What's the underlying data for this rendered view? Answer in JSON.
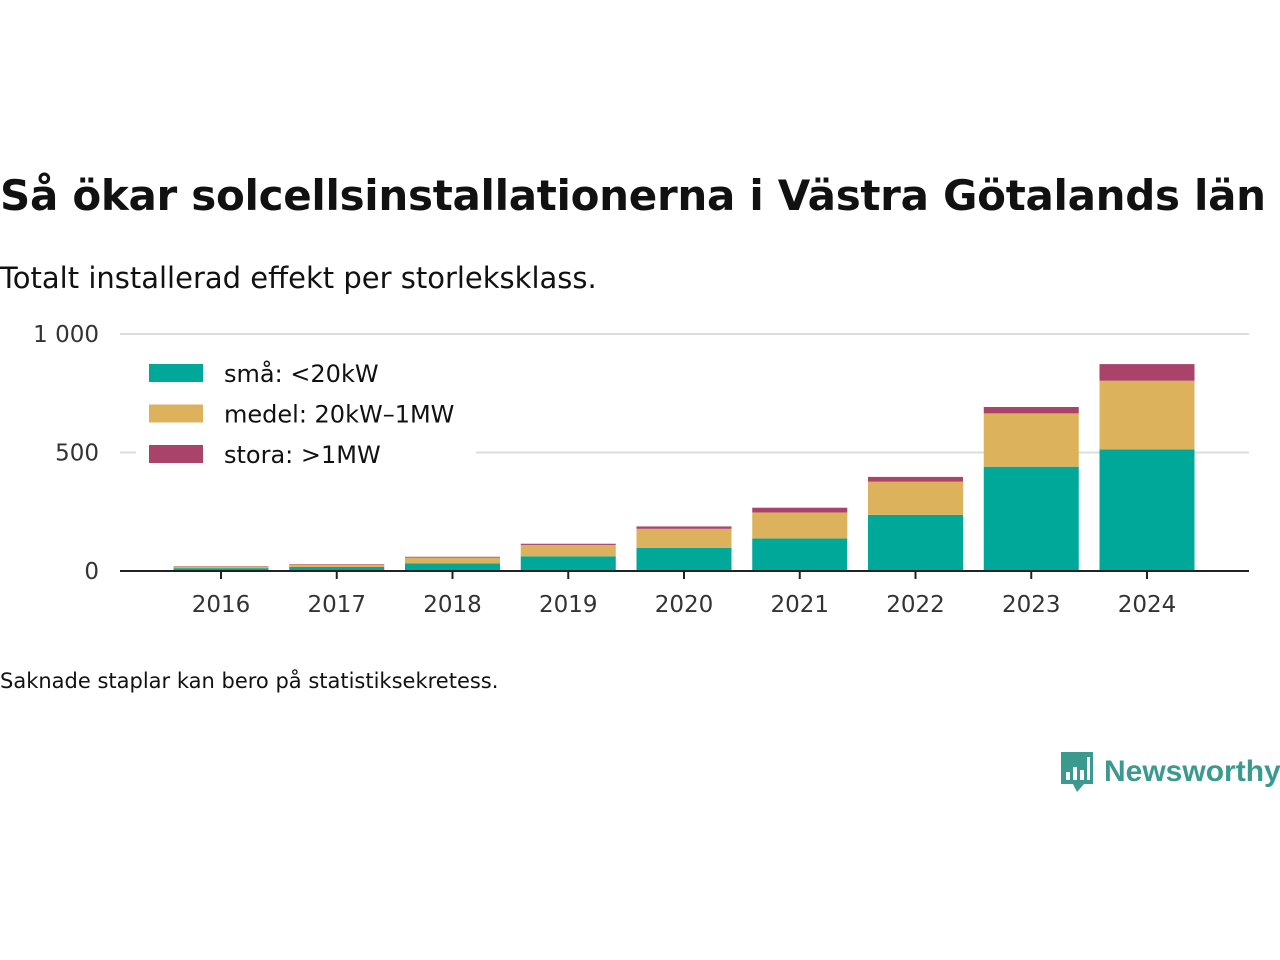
{
  "chart_data": {
    "type": "bar",
    "stacked": true,
    "title": "Så ökar solcellsinstallationerna i Västra Götalands län",
    "subtitle": "Totalt installerad effekt per storleksklass.",
    "categories": [
      "2016",
      "2017",
      "2018",
      "2019",
      "2020",
      "2021",
      "2022",
      "2023",
      "2024"
    ],
    "series": [
      {
        "name": "små: <20kW",
        "color": "#00a89a",
        "values": [
          12,
          17,
          32,
          62,
          98,
          137,
          237,
          440,
          513
        ]
      },
      {
        "name": "medel: 20kW–1MW",
        "color": "#dcb35c",
        "values": [
          8,
          10,
          25,
          48,
          80,
          110,
          140,
          225,
          290
        ]
      },
      {
        "name": "stora: >1MW",
        "color": "#a9436a",
        "values": [
          1,
          2,
          3,
          5,
          10,
          20,
          20,
          27,
          70
        ]
      }
    ],
    "yticks": [
      0,
      500,
      1000
    ],
    "ytick_labels": [
      "0",
      "500",
      "1 000"
    ],
    "ylim": [
      0,
      1000
    ],
    "grid": true,
    "legend": "top-left",
    "footnote": "Saknade staplar kan bero på statistiksekretess."
  },
  "brand": {
    "name": "Newsworthy",
    "icon": "bar-chart-speech-bubble-icon",
    "color": "#3a9a8e"
  }
}
